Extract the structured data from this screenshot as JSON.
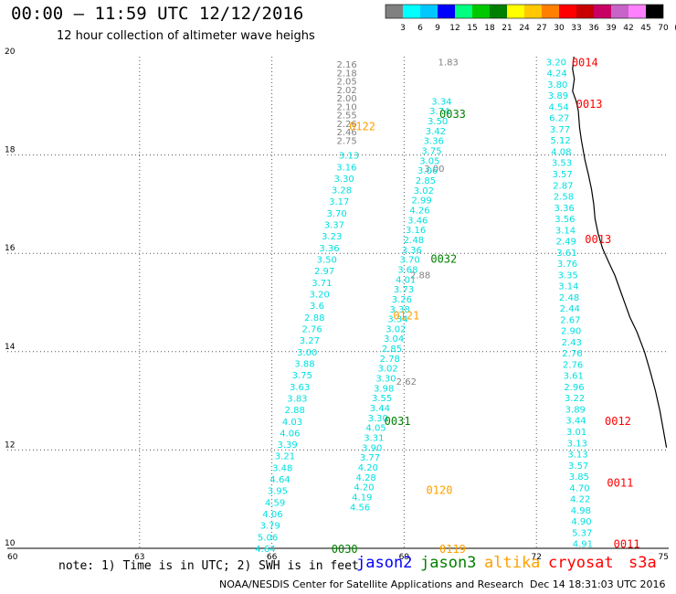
{
  "header": {
    "title": "00:00 – 11:59 UTC 12/12/2016",
    "subtitle": "12 hour collection of altimeter wave heighs"
  },
  "colorbar": {
    "labels": [
      "3",
      "6",
      "9",
      "12",
      "15",
      "18",
      "21",
      "24",
      "27",
      "30",
      "33",
      "36",
      "39",
      "42",
      "45",
      "70",
      "(ft)"
    ],
    "colors": [
      "#808080",
      "#00ffff",
      "#00c8ff",
      "#0000ff",
      "#00ff80",
      "#00c800",
      "#008000",
      "#ffff00",
      "#ffc800",
      "#ff8000",
      "#ff0000",
      "#c80000",
      "#c80064",
      "#c864c8",
      "#ff80ff",
      "#000000"
    ]
  },
  "note": "note: 1) Time is in UTC; 2) SWH is in feet",
  "legend": [
    {
      "label": "jason2",
      "color": "#0000ff"
    },
    {
      "label": "jason3",
      "color": "#008000"
    },
    {
      "label": "altika",
      "color": "#ffa000"
    },
    {
      "label": "cryosat",
      "color": "#ff0000"
    },
    {
      "label": "s3a",
      "color": "#ff0000"
    }
  ],
  "footer": {
    "org": "NOAA/NESDIS Center for Satellite Applications and Research",
    "date": "Dec 14 18:31:03 UTC 2016"
  },
  "chart_data": {
    "type": "scatter",
    "xlim": [
      60,
      75
    ],
    "ylim": [
      10,
      20
    ],
    "x_ticks": [
      60,
      63,
      66,
      69,
      72,
      75
    ],
    "y_ticks": [
      10,
      12,
      14,
      16,
      18,
      20
    ],
    "grid": true,
    "pass_labels": [
      {
        "text": "0014",
        "x": 72.8,
        "y": 19.9,
        "color": "#ff0000"
      },
      {
        "text": "0013",
        "x": 72.9,
        "y": 19.05,
        "color": "#ff0000"
      },
      {
        "text": "0033",
        "x": 69.8,
        "y": 18.85,
        "color": "#008000"
      },
      {
        "text": "0122",
        "x": 67.75,
        "y": 18.6,
        "color": "#ffa000"
      },
      {
        "text": "0013",
        "x": 73.1,
        "y": 16.3,
        "color": "#ff0000"
      },
      {
        "text": "0032",
        "x": 69.6,
        "y": 15.9,
        "color": "#008000"
      },
      {
        "text": "0121",
        "x": 68.75,
        "y": 14.75,
        "color": "#ffa000"
      },
      {
        "text": "0031",
        "x": 68.55,
        "y": 12.6,
        "color": "#008000"
      },
      {
        "text": "0012",
        "x": 73.55,
        "y": 12.6,
        "color": "#ff0000"
      },
      {
        "text": "0011",
        "x": 73.6,
        "y": 11.35,
        "color": "#ff0000"
      },
      {
        "text": "0120",
        "x": 69.5,
        "y": 11.2,
        "color": "#ffa000"
      },
      {
        "text": "0030",
        "x": 67.35,
        "y": 10.0,
        "color": "#008000"
      },
      {
        "text": "0119",
        "x": 69.8,
        "y": 10.0,
        "color": "#ffa000"
      },
      {
        "text": "0011",
        "x": 73.75,
        "y": 10.1,
        "color": "#ff0000"
      }
    ],
    "tracks": [
      {
        "x0": 67.7,
        "x1": 67.7,
        "y0": 19.85,
        "y1": 18.3,
        "color": "#808080",
        "values": [
          "2.16",
          "2.18",
          "2.05",
          "2.02",
          "2.00",
          "2.10",
          "2.55",
          "2.26",
          "2.46",
          "2.75"
        ]
      },
      {
        "x0": 67.75,
        "x1": 65.85,
        "y0": 18.0,
        "y1": 10.0,
        "color": "#00e0e0",
        "values": [
          "3.13",
          "3.16",
          "3.30",
          "3.28",
          "3.17",
          "3.70",
          "3.37",
          "3.23",
          "3.36",
          "3.50",
          "2.97",
          "3.71",
          "3.20",
          "3.6",
          "2.88",
          "2.76",
          "3.27",
          "3.00",
          "3.88",
          "3.75",
          "3.63",
          "3.83",
          "2.88",
          "4.03",
          "4.06",
          "3.39",
          "3.21",
          "3.48",
          "4.64",
          "3.95",
          "4.59",
          "4.06",
          "3.79",
          "5.06",
          "4.64"
        ]
      },
      {
        "x0": 70.0,
        "x1": 69.05,
        "y0": 19.9,
        "y1": 13.4,
        "color": "#808080",
        "values": [
          "1.83",
          "3.00",
          "2.88",
          "2.62"
        ]
      },
      {
        "x0": 69.85,
        "x1": 68.0,
        "y0": 19.1,
        "y1": 10.85,
        "color": "#00e0e0",
        "values": [
          "3.34",
          "3.74",
          "3.50",
          "3.42",
          "3.36",
          "3.75",
          "3.05",
          "3.06",
          "2.85",
          "3.02",
          "2.99",
          "4.26",
          "3.46",
          "3.16",
          "2.48",
          "3.36",
          "3.70",
          "3.68",
          "4.01",
          "3.73",
          "3.26",
          "3.38",
          "3.34",
          "3.02",
          "3.04",
          "2.85",
          "2.78",
          "3.02",
          "3.30",
          "3.98",
          "3.55",
          "3.44",
          "3.30",
          "4.05",
          "3.31",
          "3.90",
          "3.77",
          "4.20",
          "4.28",
          "4.20",
          "4.19",
          "4.56"
        ]
      },
      {
        "x0": 72.45,
        "x1": 73.05,
        "y0": 19.9,
        "y1": 10.1,
        "color": "#00e0e0",
        "values": [
          "3.20",
          "4.24",
          "3.80",
          "3.89",
          "4.54",
          "6.27",
          "3.77",
          "5.12",
          "4.08",
          "3.53",
          "3.57",
          "2.87",
          "2.58",
          "3.36",
          "3.56",
          "3.14",
          "2.49",
          "3.61",
          "3.76",
          "3.35",
          "3.14",
          "2.48",
          "2.44",
          "2.67",
          "2.90",
          "2.43",
          "2.76",
          "2.76",
          "3.61",
          "2.96",
          "3.22",
          "3.89",
          "3.44",
          "3.01",
          "3.13",
          "3.13",
          "3.57",
          "3.85",
          "4.70",
          "4.22",
          "4.98",
          "4.90",
          "5.37",
          "4.91"
        ]
      }
    ]
  }
}
